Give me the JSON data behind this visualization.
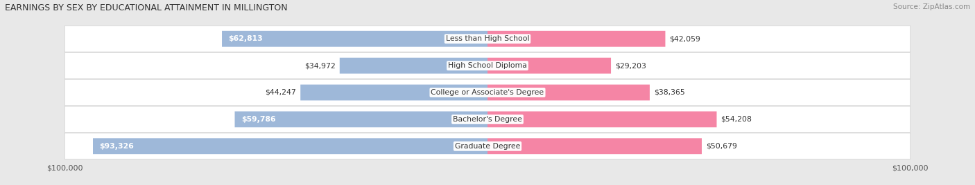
{
  "title": "EARNINGS BY SEX BY EDUCATIONAL ATTAINMENT IN MILLINGTON",
  "source": "Source: ZipAtlas.com",
  "categories": [
    "Less than High School",
    "High School Diploma",
    "College or Associate's Degree",
    "Bachelor's Degree",
    "Graduate Degree"
  ],
  "male_values": [
    62813,
    34972,
    44247,
    59786,
    93326
  ],
  "female_values": [
    42059,
    29203,
    38365,
    54208,
    50679
  ],
  "max_value": 100000,
  "male_color": "#9eb8d9",
  "female_color": "#f585a5",
  "background_color": "#e8e8e8",
  "row_bg_color": "#f5f5f5",
  "bar_height": 0.58,
  "title_fontsize": 9.0,
  "source_fontsize": 7.5,
  "value_fontsize": 7.8,
  "category_fontsize": 7.8,
  "legend_fontsize": 8.5,
  "axis_label_fontsize": 8.0,
  "inside_label_threshold": 55000
}
